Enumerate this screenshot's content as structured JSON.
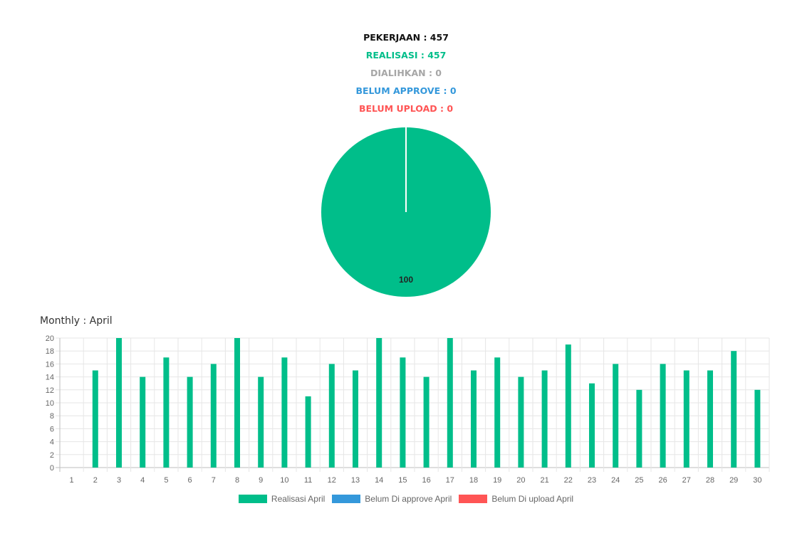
{
  "summary": {
    "pekerjaan": "PEKERJAAN : 457",
    "realisasi": "REALISASI : 457",
    "dialihkan": "DIALIHKAN : 0",
    "belum_approve": "BELUM APPROVE : 0",
    "belum_upload": "BELUM UPLOAD : 0"
  },
  "colors": {
    "black": "#111111",
    "green": "#00be8a",
    "gray": "#a6a6a6",
    "blue": "#3498db",
    "red": "#ff5555"
  },
  "monthly_title": "Monthly : April",
  "chart_data": [
    {
      "type": "pie",
      "slices": [
        {
          "value": 100,
          "color": "#00be8a",
          "label": "100"
        }
      ]
    },
    {
      "type": "bar",
      "categories": [
        "1",
        "2",
        "3",
        "4",
        "5",
        "6",
        "7",
        "8",
        "9",
        "10",
        "11",
        "12",
        "13",
        "14",
        "15",
        "16",
        "17",
        "18",
        "19",
        "20",
        "21",
        "22",
        "23",
        "24",
        "25",
        "26",
        "27",
        "28",
        "29",
        "30"
      ],
      "series": [
        {
          "name": "Realisasi April",
          "color": "#00be8a",
          "values": [
            0,
            15,
            20,
            14,
            17,
            14,
            16,
            20,
            14,
            17,
            11,
            16,
            15,
            20,
            17,
            14,
            20,
            15,
            17,
            14,
            15,
            19,
            13,
            16,
            12,
            16,
            15,
            15,
            18,
            12
          ]
        },
        {
          "name": "Belum Di approve April",
          "color": "#3498db",
          "values": [
            0,
            0,
            0,
            0,
            0,
            0,
            0,
            0,
            0,
            0,
            0,
            0,
            0,
            0,
            0,
            0,
            0,
            0,
            0,
            0,
            0,
            0,
            0,
            0,
            0,
            0,
            0,
            0,
            0,
            0
          ]
        },
        {
          "name": "Belum Di upload April",
          "color": "#ff5555",
          "values": [
            0,
            0,
            0,
            0,
            0,
            0,
            0,
            0,
            0,
            0,
            0,
            0,
            0,
            0,
            0,
            0,
            0,
            0,
            0,
            0,
            0,
            0,
            0,
            0,
            0,
            0,
            0,
            0,
            0,
            0
          ]
        }
      ],
      "yticks": [
        "0",
        "2",
        "4",
        "6",
        "8",
        "10",
        "12",
        "14",
        "16",
        "18",
        "20"
      ],
      "ylim": [
        0,
        20
      ],
      "grid": true,
      "legend": "bottom"
    }
  ]
}
